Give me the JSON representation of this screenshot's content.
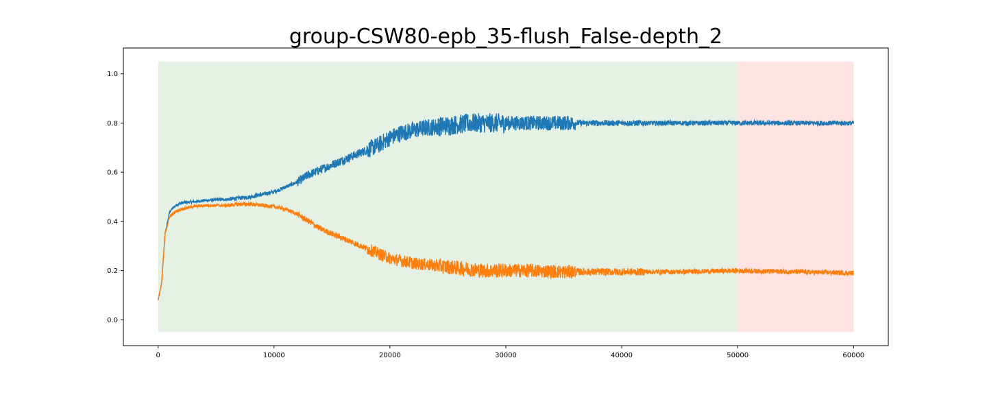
{
  "chart_data": {
    "type": "line",
    "title": "group-CSW80-epb_35-flush_False-depth_2",
    "xlabel": "",
    "ylabel": "",
    "xlim": [
      -3000,
      63000
    ],
    "ylim": [
      -0.105,
      1.105
    ],
    "xticks": [
      0,
      10000,
      20000,
      30000,
      40000,
      50000,
      60000
    ],
    "xtick_labels": [
      "0",
      "10000",
      "20000",
      "30000",
      "40000",
      "50000",
      "60000"
    ],
    "yticks": [
      0.0,
      0.2,
      0.4,
      0.6,
      0.8,
      1.0
    ],
    "ytick_labels": [
      "0.0",
      "0.2",
      "0.4",
      "0.6",
      "0.8",
      "1.0"
    ],
    "grid": false,
    "legend": "none",
    "shaded_regions": [
      {
        "x": [
          0,
          50000
        ],
        "y": [
          -0.05,
          1.05
        ],
        "color": "#e5f1e5"
      },
      {
        "x": [
          50000,
          60000
        ],
        "y": [
          -0.05,
          1.05
        ],
        "color": "#fee3e3"
      }
    ],
    "series": [
      {
        "color": "#1f77b4",
        "noise": [
          0.006,
          0.008,
          0.018,
          0.035,
          0.04,
          0.03,
          0.012,
          0.01,
          0.01,
          0.01,
          0.01
        ],
        "x": [
          0,
          300,
          600,
          1000,
          1500,
          2000,
          3000,
          4000,
          5000,
          6000,
          7000,
          8000,
          9000,
          10000,
          11000,
          12000,
          13000,
          14000,
          15000,
          16000,
          17000,
          18000,
          19000,
          20000,
          21000,
          22000,
          23000,
          24000,
          25000,
          26000,
          27000,
          28000,
          30000,
          32000,
          35000,
          40000,
          45000,
          50000,
          55000,
          60000
        ],
        "y": [
          0.08,
          0.15,
          0.35,
          0.44,
          0.465,
          0.475,
          0.48,
          0.485,
          0.488,
          0.49,
          0.495,
          0.5,
          0.51,
          0.52,
          0.54,
          0.56,
          0.59,
          0.61,
          0.63,
          0.65,
          0.67,
          0.69,
          0.71,
          0.74,
          0.76,
          0.77,
          0.78,
          0.785,
          0.79,
          0.795,
          0.8,
          0.8,
          0.8,
          0.8,
          0.8,
          0.8,
          0.8,
          0.8,
          0.8,
          0.8
        ]
      },
      {
        "color": "#ff7f0e",
        "noise": [
          0.006,
          0.008,
          0.012,
          0.025,
          0.03,
          0.028,
          0.015,
          0.01,
          0.01,
          0.01,
          0.01
        ],
        "x": [
          0,
          300,
          600,
          1000,
          1500,
          2000,
          3000,
          4000,
          5000,
          6000,
          7000,
          8000,
          9000,
          10000,
          11000,
          12000,
          13000,
          14000,
          15000,
          16000,
          17000,
          18000,
          19000,
          20000,
          21000,
          22000,
          23000,
          24000,
          25000,
          26000,
          27000,
          28000,
          30000,
          32000,
          35000,
          40000,
          45000,
          50000,
          55000,
          60000
        ],
        "y": [
          0.08,
          0.15,
          0.35,
          0.42,
          0.44,
          0.45,
          0.46,
          0.465,
          0.465,
          0.465,
          0.47,
          0.47,
          0.465,
          0.46,
          0.45,
          0.43,
          0.4,
          0.37,
          0.35,
          0.33,
          0.31,
          0.29,
          0.27,
          0.25,
          0.24,
          0.23,
          0.225,
          0.22,
          0.215,
          0.21,
          0.205,
          0.2,
          0.2,
          0.2,
          0.195,
          0.195,
          0.195,
          0.2,
          0.195,
          0.19
        ]
      }
    ]
  }
}
